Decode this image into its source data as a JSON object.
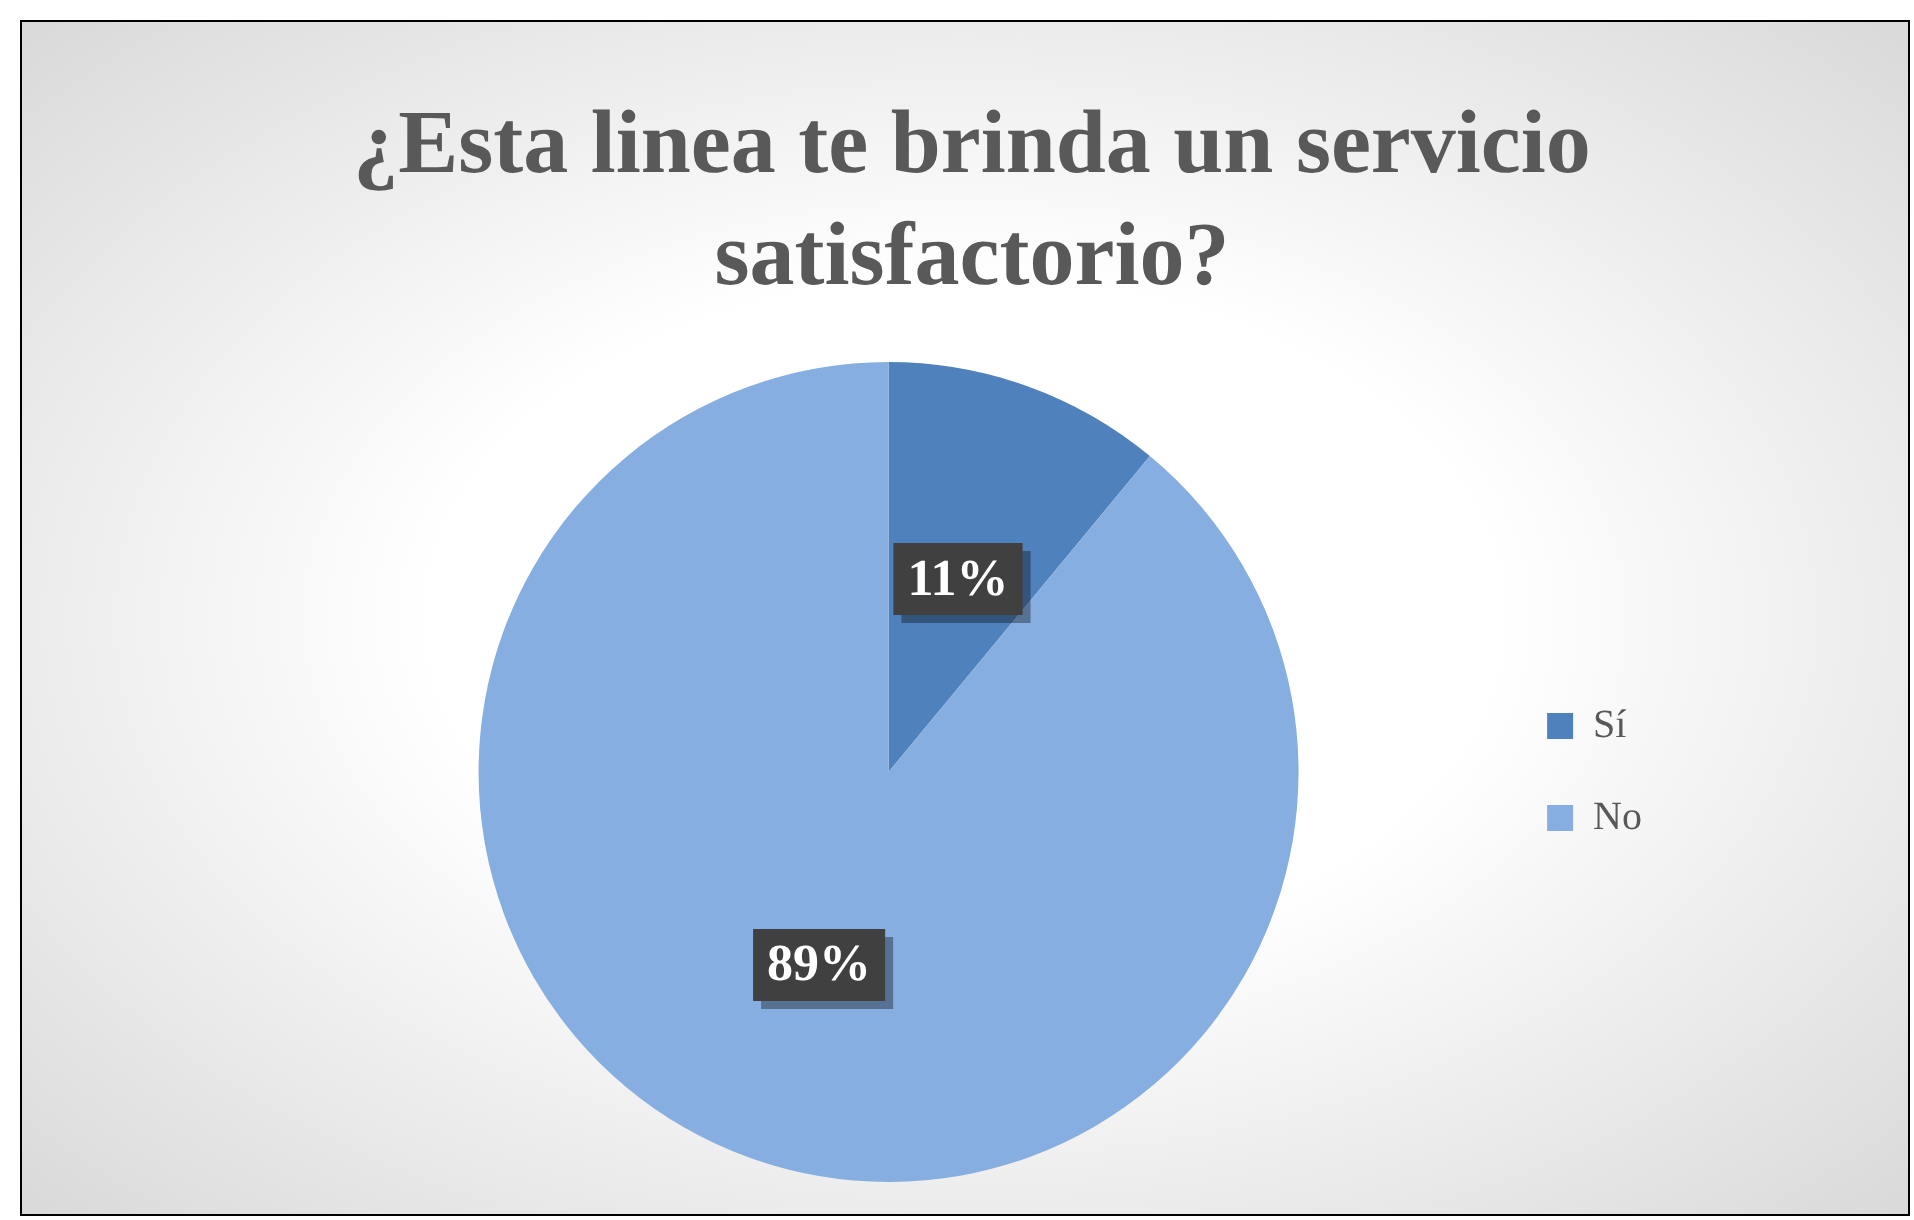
{
  "chart_data": {
    "type": "pie",
    "title": "¿Esta linea te brinda un servicio satisfactorio?",
    "categories": [
      "Sí",
      "No"
    ],
    "values": [
      11,
      89
    ],
    "colors": [
      "#4f81bd",
      "#86aee0"
    ],
    "value_labels": [
      "11%",
      "89%"
    ],
    "legend": "right"
  }
}
